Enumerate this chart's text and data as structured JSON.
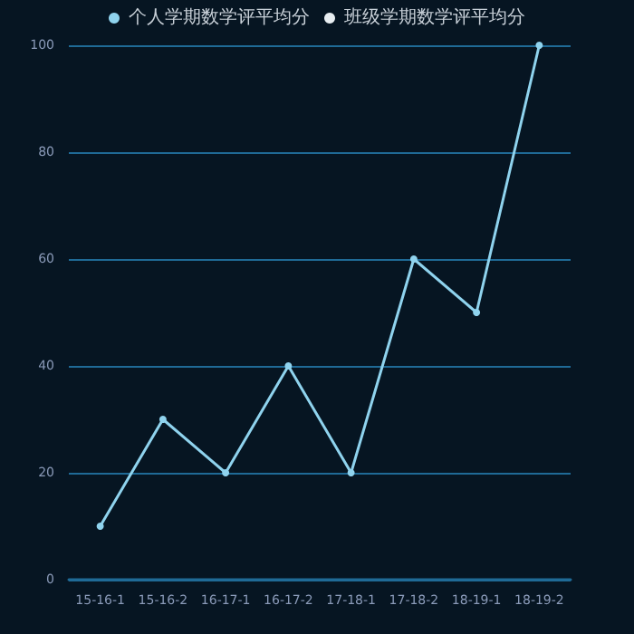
{
  "chart_data": {
    "type": "line",
    "categories": [
      "15-16-1",
      "15-16-2",
      "16-17-1",
      "16-17-2",
      "17-18-1",
      "17-18-2",
      "18-19-1",
      "18-19-2"
    ],
    "series": [
      {
        "name": "个人学期数学评平均分",
        "color": "#8fd3ee",
        "values": [
          10,
          30,
          20,
          40,
          20,
          60,
          50,
          100
        ]
      },
      {
        "name": "班级学期数学评平均分",
        "color": "#e8eef2",
        "values": [
          null,
          null,
          null,
          null,
          null,
          null,
          null,
          null
        ]
      }
    ],
    "ylim": [
      0,
      100
    ],
    "yticks": [
      0,
      20,
      40,
      60,
      80,
      100
    ],
    "grid": "y",
    "legend": "top",
    "marker": "circle",
    "line_style": "solid"
  }
}
